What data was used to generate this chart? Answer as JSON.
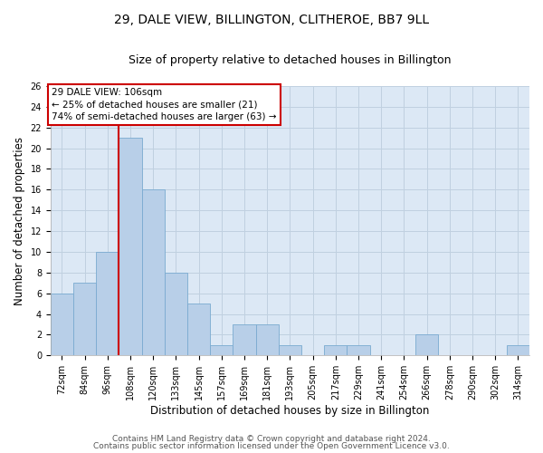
{
  "title": "29, DALE VIEW, BILLINGTON, CLITHEROE, BB7 9LL",
  "subtitle": "Size of property relative to detached houses in Billington",
  "xlabel": "Distribution of detached houses by size in Billington",
  "ylabel": "Number of detached properties",
  "categories": [
    "72sqm",
    "84sqm",
    "96sqm",
    "108sqm",
    "120sqm",
    "133sqm",
    "145sqm",
    "157sqm",
    "169sqm",
    "181sqm",
    "193sqm",
    "205sqm",
    "217sqm",
    "229sqm",
    "241sqm",
    "254sqm",
    "266sqm",
    "278sqm",
    "290sqm",
    "302sqm",
    "314sqm"
  ],
  "values": [
    6,
    7,
    10,
    21,
    16,
    8,
    5,
    1,
    3,
    3,
    1,
    0,
    1,
    1,
    0,
    0,
    2,
    0,
    0,
    0,
    1
  ],
  "bar_color": "#b8cfe8",
  "bar_edge_color": "#7aaad0",
  "vline_color": "#cc0000",
  "annotation_line1": "29 DALE VIEW: 106sqm",
  "annotation_line2": "← 25% of detached houses are smaller (21)",
  "annotation_line3": "74% of semi-detached houses are larger (63) →",
  "annotation_box_color": "#cc0000",
  "ylim": [
    0,
    26
  ],
  "yticks": [
    0,
    2,
    4,
    6,
    8,
    10,
    12,
    14,
    16,
    18,
    20,
    22,
    24,
    26
  ],
  "grid_color": "#c0d0e0",
  "bg_color": "#dce8f5",
  "footer1": "Contains HM Land Registry data © Crown copyright and database right 2024.",
  "footer2": "Contains public sector information licensed under the Open Government Licence v3.0.",
  "title_fontsize": 10,
  "subtitle_fontsize": 9,
  "xlabel_fontsize": 8.5,
  "ylabel_fontsize": 8.5,
  "tick_fontsize": 7,
  "footer_fontsize": 6.5,
  "annotation_fontsize": 7.5
}
